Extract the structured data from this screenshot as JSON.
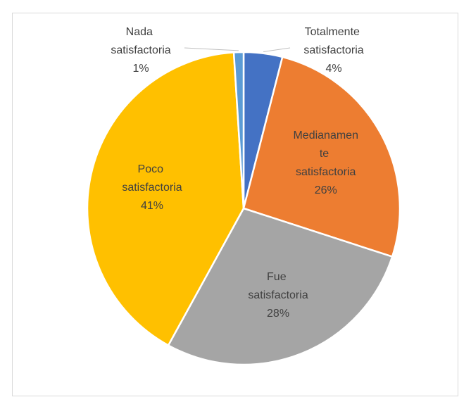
{
  "chart_data": {
    "type": "pie",
    "categories": [
      "Totalmente satisfactoria",
      "Medianamente satisfactoria",
      "Fue satisfactoria",
      "Poco satisfactoria",
      "Nada satisfactoria"
    ],
    "values": [
      4,
      26,
      28,
      41,
      1
    ],
    "value_labels": [
      "4%",
      "26%",
      "28%",
      "41%",
      "1%"
    ],
    "colors": [
      "#4472c4",
      "#ed7d31",
      "#a5a5a5",
      "#ffc000",
      "#5b9bd5"
    ]
  }
}
